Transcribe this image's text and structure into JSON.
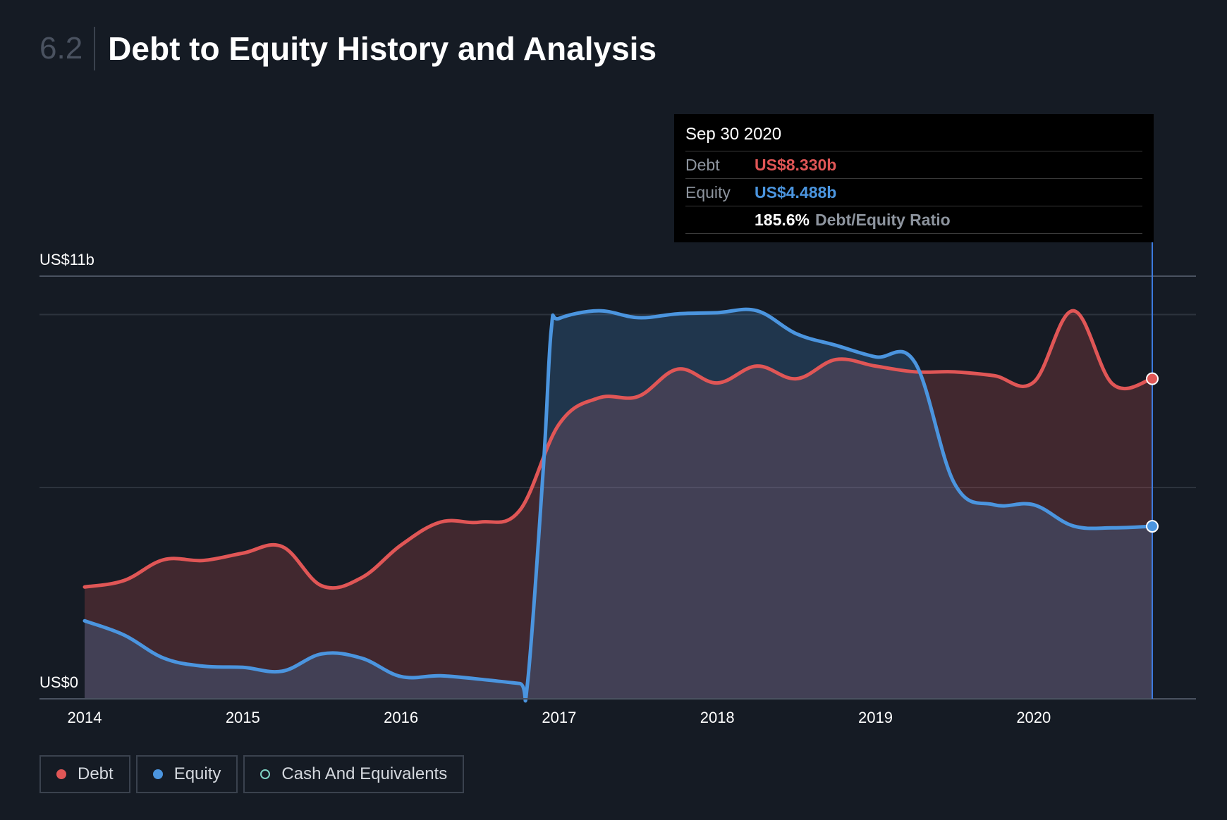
{
  "header": {
    "section_number": "6.2",
    "title": "Debt to Equity History and Analysis"
  },
  "tooltip": {
    "date": "Sep 30 2020",
    "debt_label": "Debt",
    "debt_value": "US$8.330b",
    "equity_label": "Equity",
    "equity_value": "US$4.488b",
    "ratio_value": "185.6%",
    "ratio_label": "Debt/Equity Ratio"
  },
  "legend": {
    "debt": "Debt",
    "equity": "Equity",
    "cash": "Cash And Equivalents"
  },
  "colors": {
    "background": "#151b24",
    "debt": "#e05656",
    "equity": "#4b95df",
    "cash": "#7fd3c4",
    "grid": "#2c333d"
  },
  "chart_data": {
    "type": "area",
    "y_top_label": "US$11b",
    "y_bottom_label": "US$0",
    "ylim": [
      0,
      11
    ],
    "xlim": [
      2014.0,
      2020.75
    ],
    "x_ticks": [
      "2014",
      "2015",
      "2016",
      "2017",
      "2018",
      "2019",
      "2020"
    ],
    "gridlines": [
      5.5,
      10.0,
      11.0
    ],
    "highlight_x": 2020.75,
    "series": [
      {
        "name": "Debt",
        "x": [
          2014.0,
          2014.25,
          2014.5,
          2014.75,
          2015.0,
          2015.25,
          2015.5,
          2015.75,
          2016.0,
          2016.25,
          2016.5,
          2016.75,
          2017.0,
          2017.25,
          2017.5,
          2017.75,
          2018.0,
          2018.25,
          2018.5,
          2018.75,
          2019.0,
          2019.25,
          2019.5,
          2019.75,
          2020.0,
          2020.25,
          2020.5,
          2020.75
        ],
        "values": [
          2.91,
          3.08,
          3.62,
          3.6,
          3.79,
          3.96,
          2.94,
          3.15,
          4.0,
          4.6,
          4.6,
          4.9,
          7.15,
          7.83,
          7.87,
          8.58,
          8.22,
          8.66,
          8.33,
          8.83,
          8.66,
          8.51,
          8.51,
          8.41,
          8.24,
          10.1,
          8.19,
          8.33
        ]
      },
      {
        "name": "Equity",
        "x": [
          2014.0,
          2014.25,
          2014.5,
          2014.75,
          2015.0,
          2015.25,
          2015.5,
          2015.75,
          2016.0,
          2016.25,
          2016.5,
          2016.75,
          2016.8,
          2016.9,
          2016.95,
          2017.0,
          2017.25,
          2017.5,
          2017.75,
          2018.0,
          2018.25,
          2018.5,
          2018.75,
          2019.0,
          2019.25,
          2019.5,
          2019.75,
          2020.0,
          2020.25,
          2020.5,
          2020.75
        ],
        "values": [
          2.03,
          1.66,
          1.06,
          0.85,
          0.82,
          0.72,
          1.17,
          1.06,
          0.58,
          0.6,
          0.51,
          0.4,
          0.4,
          6.0,
          9.6,
          9.9,
          10.1,
          9.92,
          10.02,
          10.05,
          10.1,
          9.5,
          9.2,
          8.9,
          8.75,
          5.6,
          5.05,
          5.05,
          4.5,
          4.45,
          4.49
        ]
      },
      {
        "name": "Cash And Equivalents",
        "x": [],
        "values": []
      }
    ]
  }
}
